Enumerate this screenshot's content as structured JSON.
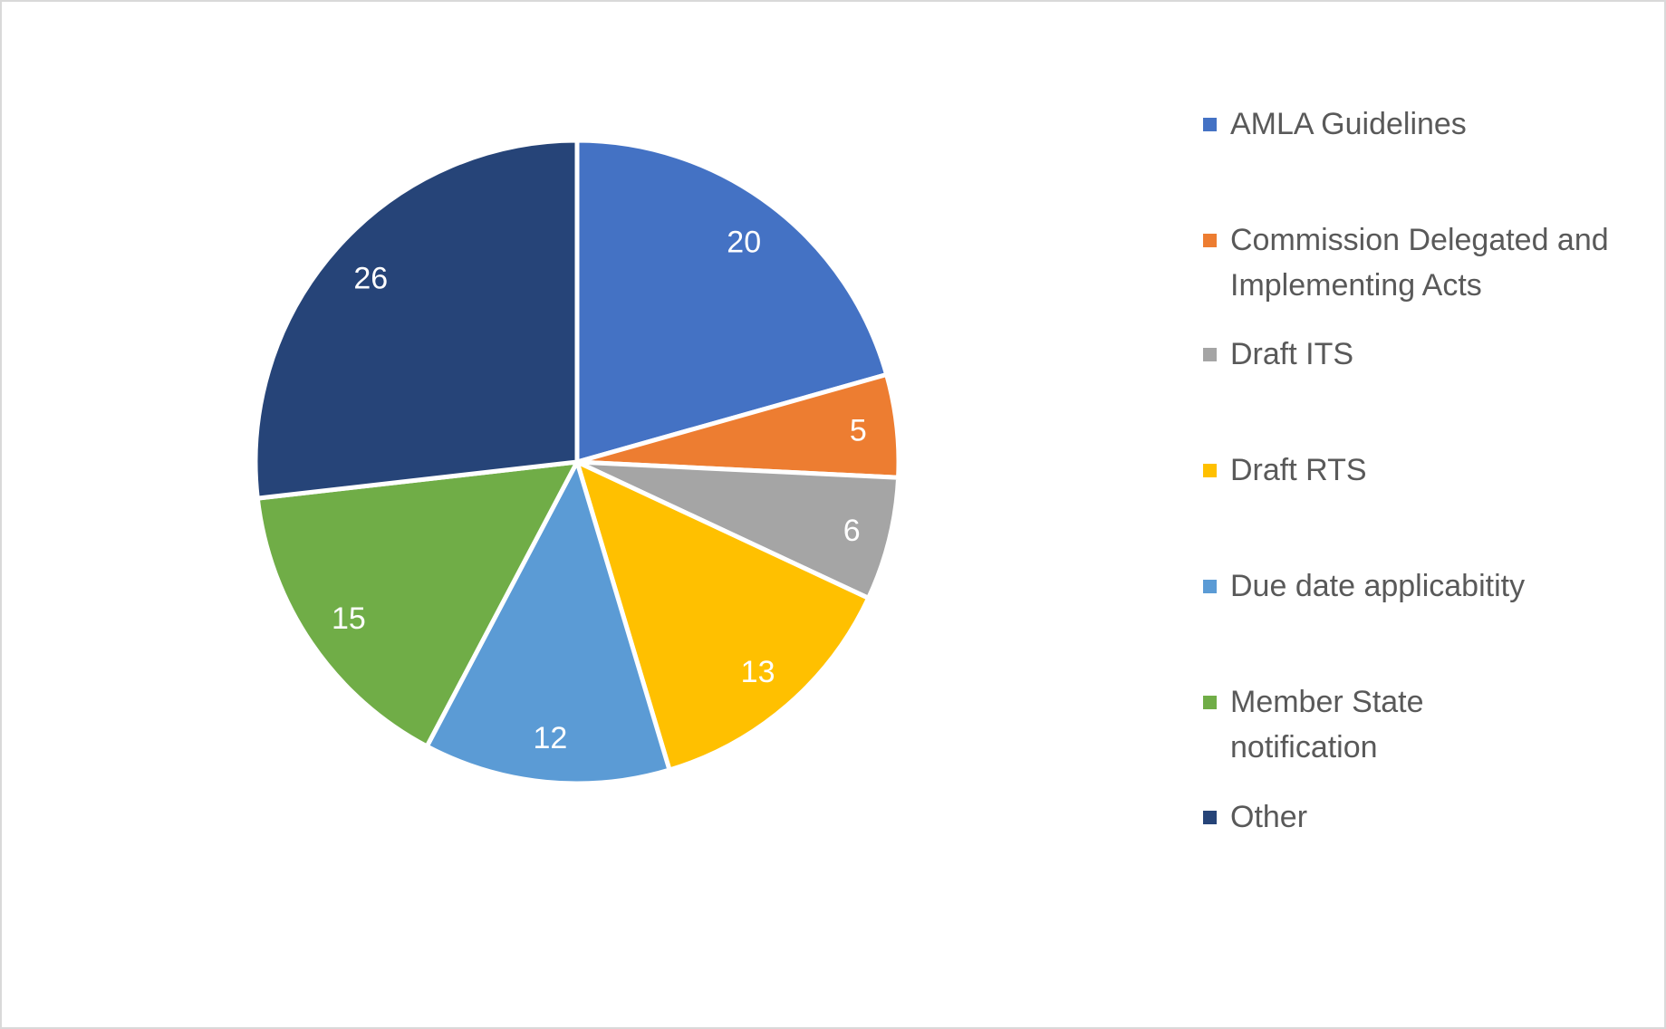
{
  "chart_data": {
    "type": "pie",
    "categories": [
      "AMLA Guidelines",
      "Commission Delegated and Implementing Acts",
      "Draft ITS",
      "Draft RTS",
      "Due date applicabitity",
      "Member State notification",
      "Other"
    ],
    "values": [
      20,
      5,
      6,
      13,
      12,
      15,
      26
    ],
    "colors": [
      "#4472C4",
      "#ED7D31",
      "#A5A5A5",
      "#FFC000",
      "#5B9BD5",
      "#70AD47",
      "#264478"
    ],
    "data_labels": [
      "20",
      "5",
      "6",
      "13",
      "12",
      "15",
      "26"
    ],
    "start_angle": "top, clockwise",
    "legend_position": "right"
  }
}
